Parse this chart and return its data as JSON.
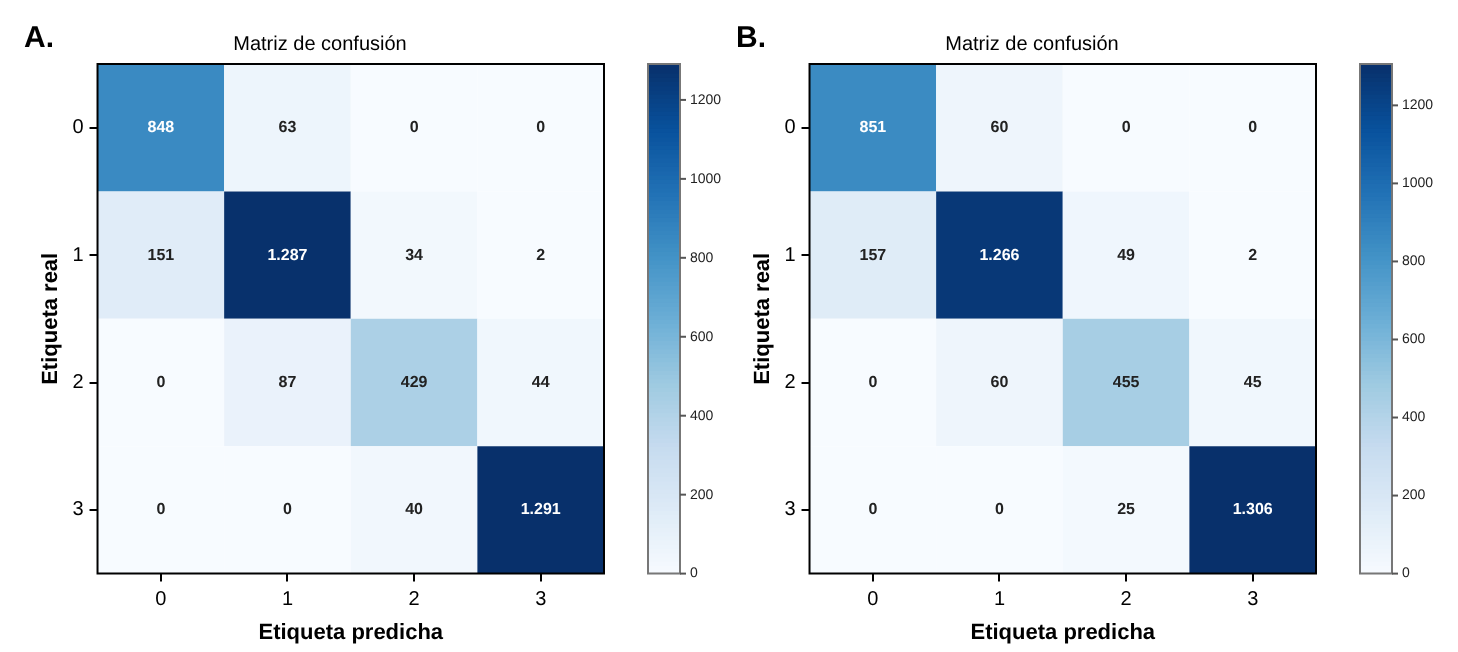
{
  "chart_data": [
    {
      "type": "heatmap",
      "title": "Matriz de confusión",
      "xlabel": "Etiqueta predicha",
      "ylabel": "Etiqueta real",
      "annotations": [
        "A."
      ],
      "categories": [
        "0",
        "1",
        "2",
        "3"
      ],
      "y_categories": [
        "0",
        "1",
        "2",
        "3"
      ],
      "cells": [
        [
          848,
          63,
          0,
          0
        ],
        [
          151,
          1287,
          34,
          2
        ],
        [
          0,
          87,
          429,
          44
        ],
        [
          0,
          0,
          40,
          1291
        ]
      ],
      "cell_labels": [
        [
          "848",
          "63",
          "0",
          "0"
        ],
        [
          "151",
          "1.287",
          "34",
          "2"
        ],
        [
          "0",
          "87",
          "429",
          "44"
        ],
        [
          "0",
          "0",
          "40",
          "1.291"
        ]
      ],
      "clim": [
        0,
        1291
      ],
      "cticks": [
        0,
        200,
        400,
        600,
        800,
        1000,
        1200
      ]
    },
    {
      "type": "heatmap",
      "title": "Matriz de confusión",
      "xlabel": "Etiqueta predicha",
      "ylabel": "Etiqueta real",
      "annotations": [
        "B."
      ],
      "categories": [
        "0",
        "1",
        "2",
        "3"
      ],
      "y_categories": [
        "0",
        "1",
        "2",
        "3"
      ],
      "cells": [
        [
          851,
          60,
          0,
          0
        ],
        [
          157,
          1266,
          49,
          2
        ],
        [
          0,
          60,
          455,
          45
        ],
        [
          0,
          0,
          25,
          1306
        ]
      ],
      "cell_labels": [
        [
          "851",
          "60",
          "0",
          "0"
        ],
        [
          "157",
          "1.266",
          "49",
          "2"
        ],
        [
          "0",
          "60",
          "455",
          "45"
        ],
        [
          "0",
          "0",
          "25",
          "1.306"
        ]
      ],
      "clim": [
        0,
        1306
      ],
      "cticks": [
        0,
        200,
        400,
        600,
        800,
        1000,
        1200
      ]
    }
  ]
}
